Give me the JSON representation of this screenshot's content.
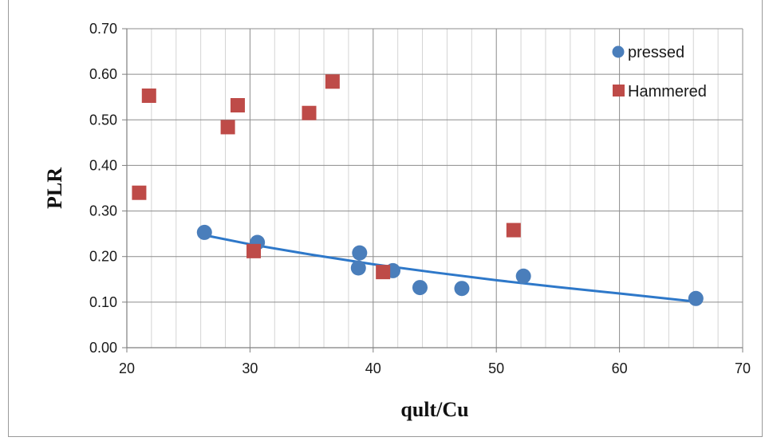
{
  "chart_data": {
    "type": "scatter",
    "xlabel": "qult/Cu",
    "ylabel": "PLR",
    "xlim": [
      20,
      70
    ],
    "ylim": [
      0,
      0.7
    ],
    "x_ticks": [
      20,
      30,
      40,
      50,
      60,
      70
    ],
    "x_tick_labels": [
      "20",
      "30",
      "40",
      "50",
      "60",
      "70"
    ],
    "y_ticks": [
      0,
      0.1,
      0.2,
      0.3,
      0.4,
      0.5,
      0.6,
      0.7
    ],
    "y_tick_labels": [
      "0.00",
      "0.10",
      "0.20",
      "0.30",
      "0.40",
      "0.50",
      "0.60",
      "0.70"
    ],
    "grid": true,
    "legend_position": "top-right",
    "series": [
      {
        "name": "pressed",
        "marker": "circle",
        "color": "#4a7ebb",
        "x": [
          26.3,
          30.6,
          38.8,
          38.9,
          41.6,
          43.8,
          47.2,
          52.2,
          66.2
        ],
        "y": [
          0.253,
          0.231,
          0.175,
          0.208,
          0.169,
          0.132,
          0.13,
          0.157,
          0.108
        ]
      },
      {
        "name": "Hammered",
        "marker": "square",
        "color": "#be4b48",
        "x": [
          21.0,
          21.8,
          28.2,
          29.0,
          30.3,
          34.8,
          36.7,
          40.8,
          51.4
        ],
        "y": [
          0.34,
          0.553,
          0.484,
          0.532,
          0.212,
          0.515,
          0.584,
          0.166,
          0.258
        ]
      }
    ],
    "trendline": {
      "series": "pressed",
      "color": "#2e78c9",
      "x": [
        26.3,
        30,
        35,
        40,
        45,
        50,
        55,
        60,
        66.2
      ],
      "y": [
        0.247,
        0.227,
        0.204,
        0.183,
        0.165,
        0.148,
        0.133,
        0.119,
        0.101
      ]
    }
  }
}
